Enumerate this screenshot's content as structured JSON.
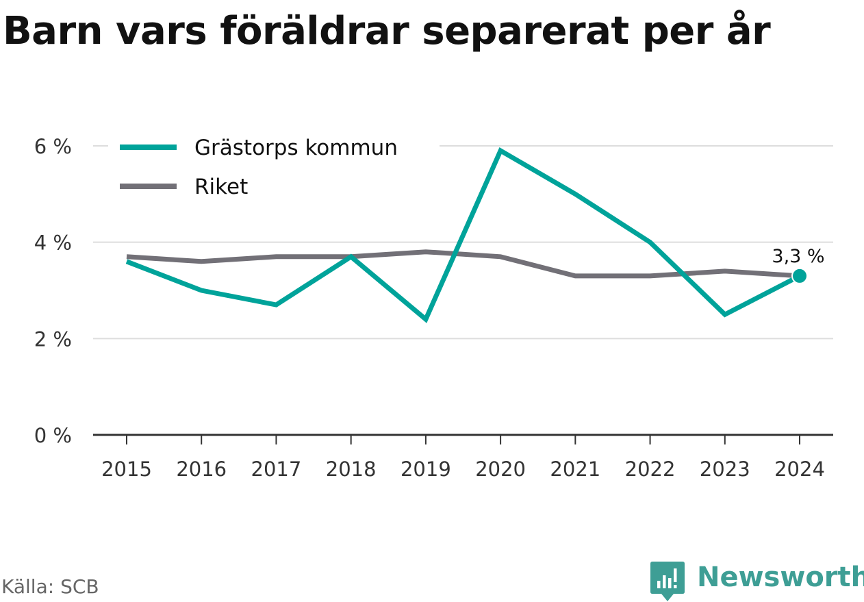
{
  "title": "Barn vars föräldrar separerat per år",
  "source": "Källa: SCB",
  "brand": {
    "name": "Newsworthy",
    "color": "#3e9e95"
  },
  "chart_data": {
    "type": "line",
    "x": [
      "2015",
      "2016",
      "2017",
      "2018",
      "2019",
      "2020",
      "2021",
      "2022",
      "2023",
      "2024"
    ],
    "series": [
      {
        "name": "Grästorps kommun",
        "color": "#00a39a",
        "values": [
          3.6,
          3.0,
          2.7,
          3.7,
          2.4,
          5.9,
          5.0,
          4.0,
          2.5,
          3.3
        ]
      },
      {
        "name": "Riket",
        "color": "#727077",
        "values": [
          3.7,
          3.6,
          3.7,
          3.7,
          3.8,
          3.7,
          3.3,
          3.3,
          3.4,
          3.3
        ]
      }
    ],
    "ylim": [
      0,
      6
    ],
    "yticks": [
      0,
      2,
      4,
      6
    ],
    "ytick_labels": [
      "0 %",
      "2 %",
      "4 %",
      "6 %"
    ],
    "grid": true,
    "legend_position": "top-left",
    "end_label": {
      "series": 0,
      "text": "3,3 %"
    }
  }
}
